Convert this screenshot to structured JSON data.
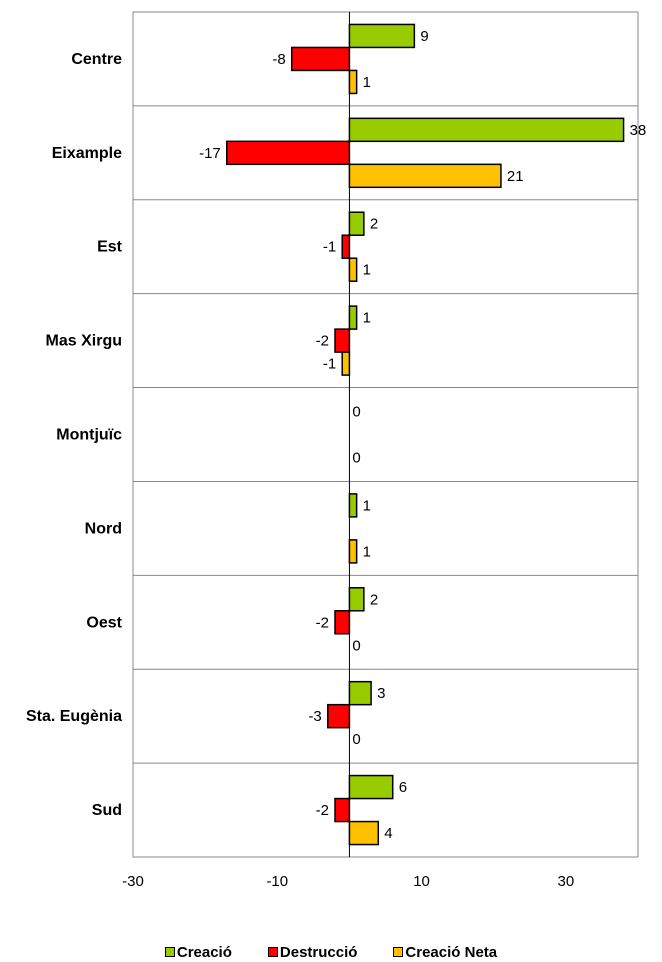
{
  "chart_data": {
    "type": "bar",
    "orientation": "horizontal",
    "categories": [
      "Centre",
      "Eixample",
      "Est",
      "Mas Xirgu",
      "Montjuïc",
      "Nord",
      "Oest",
      "Sta. Eugènia",
      "Sud"
    ],
    "series": [
      {
        "name": "Creació",
        "color": "#99CC00",
        "values": [
          9,
          38,
          2,
          1,
          0,
          1,
          2,
          3,
          6
        ]
      },
      {
        "name": "Destrucció",
        "color": "#FF0000",
        "values": [
          -8,
          -17,
          -1,
          -2,
          null,
          null,
          -2,
          -3,
          -2
        ]
      },
      {
        "name": "Creació Neta",
        "color": "#FFC000",
        "values": [
          1,
          21,
          1,
          -1,
          0,
          1,
          0,
          0,
          4
        ]
      }
    ],
    "xlim": [
      -30,
      40
    ],
    "xticks": [
      "-30",
      "-10",
      "10",
      "30"
    ],
    "gridlines": "horizontal category separators",
    "legend_position": "bottom"
  }
}
